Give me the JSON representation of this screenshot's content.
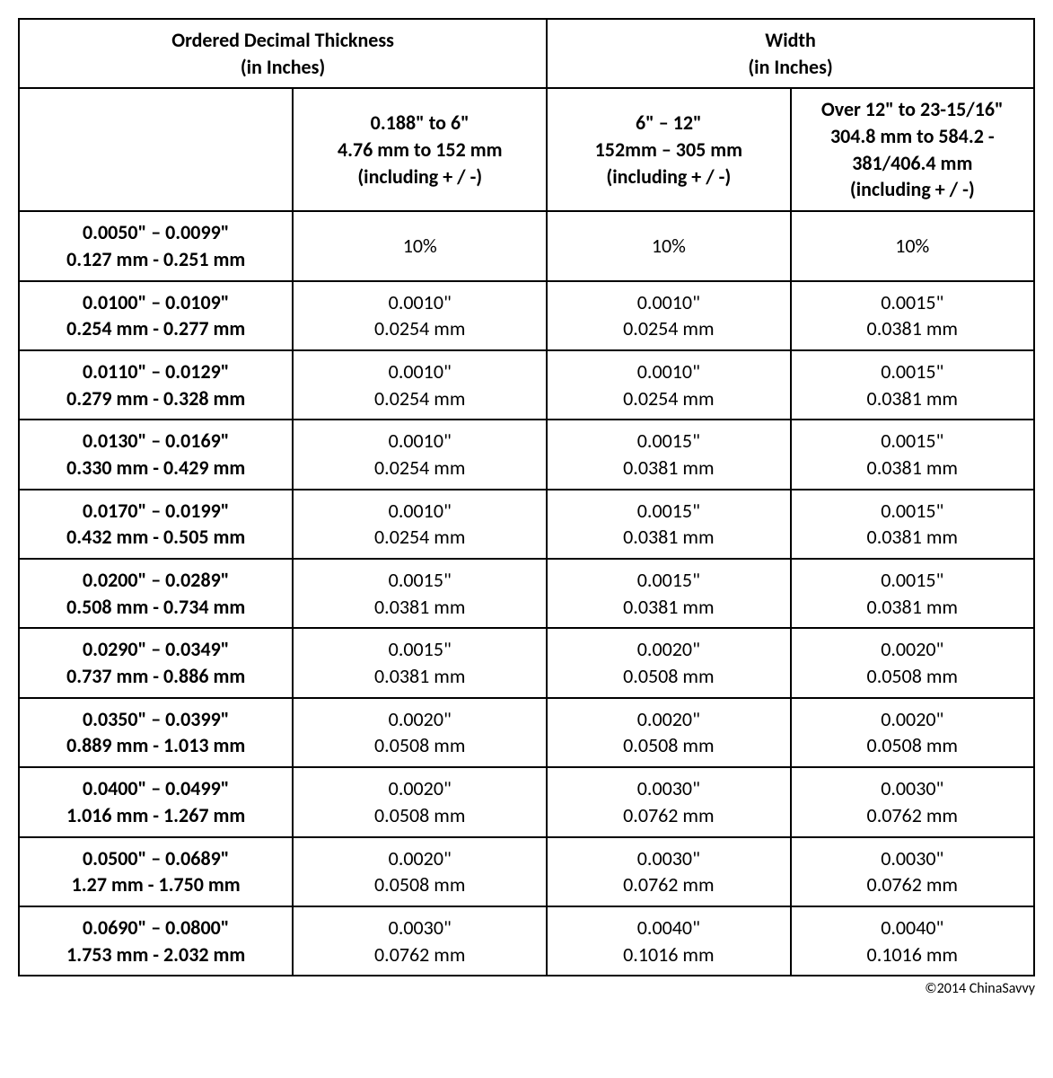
{
  "table": {
    "header": {
      "thickness": "Ordered Decimal Thickness\n(in Inches)",
      "width": "Width\n(in Inches)"
    },
    "subheaders": {
      "blank": "",
      "colA": "0.188\" to 6\"\n4.76 mm to 152 mm\n(including + / -)",
      "colB": "6\" – 12\"\n152mm – 305 mm\n(including + / -)",
      "colC": "Over 12\" to 23-15/16\"\n304.8 mm to 584.2 - 381/406.4 mm\n(including + / -)"
    },
    "rows": [
      {
        "label": "0.0050\" – 0.0099\"\n0.127 mm - 0.251 mm",
        "a": "10%",
        "b": "10%",
        "c": "10%"
      },
      {
        "label": "0.0100\" – 0.0109\"\n0.254 mm - 0.277 mm",
        "a": "0.0010\"\n0.0254 mm",
        "b": "0.0010\"\n0.0254 mm",
        "c": "0.0015\"\n0.0381 mm"
      },
      {
        "label": "0.0110\" – 0.0129\"\n0.279 mm - 0.328 mm",
        "a": "0.0010\"\n0.0254 mm",
        "b": "0.0010\"\n0.0254 mm",
        "c": "0.0015\"\n0.0381 mm"
      },
      {
        "label": "0.0130\" – 0.0169\"\n0.330 mm - 0.429 mm",
        "a": "0.0010\"\n0.0254 mm",
        "b": "0.0015\"\n0.0381 mm",
        "c": "0.0015\"\n0.0381 mm"
      },
      {
        "label": "0.0170\" – 0.0199\"\n0.432 mm - 0.505 mm",
        "a": "0.0010\"\n0.0254 mm",
        "b": "0.0015\"\n0.0381 mm",
        "c": "0.0015\"\n0.0381 mm"
      },
      {
        "label": "0.0200\" – 0.0289\"\n0.508 mm - 0.734 mm",
        "a": "0.0015\"\n0.0381 mm",
        "b": "0.0015\"\n0.0381 mm",
        "c": "0.0015\"\n0.0381 mm"
      },
      {
        "label": "0.0290\" – 0.0349\"\n0.737 mm - 0.886 mm",
        "a": "0.0015\"\n0.0381 mm",
        "b": "0.0020\"\n0.0508 mm",
        "c": "0.0020\"\n0.0508 mm"
      },
      {
        "label": "0.0350\" – 0.0399\"\n0.889 mm - 1.013 mm",
        "a": "0.0020\"\n0.0508 mm",
        "b": "0.0020\"\n0.0508 mm",
        "c": "0.0020\"\n0.0508 mm"
      },
      {
        "label": "0.0400\" – 0.0499\"\n1.016 mm - 1.267 mm",
        "a": "0.0020\"\n0.0508 mm",
        "b": "0.0030\"\n0.0762 mm",
        "c": "0.0030\"\n0.0762 mm"
      },
      {
        "label": "0.0500\" – 0.0689\"\n1.27 mm - 1.750 mm",
        "a": "0.0020\"\n0.0508 mm",
        "b": "0.0030\"\n0.0762 mm",
        "c": "0.0030\"\n0.0762 mm"
      },
      {
        "label": "0.0690\" – 0.0800\"\n1.753 mm - 2.032 mm",
        "a": "0.0030\"\n0.0762 mm",
        "b": "0.0040\"\n0.1016 mm",
        "c": "0.0040\"\n0.1016 mm"
      }
    ]
  },
  "copyright": "©2014 ChinaSavvy"
}
